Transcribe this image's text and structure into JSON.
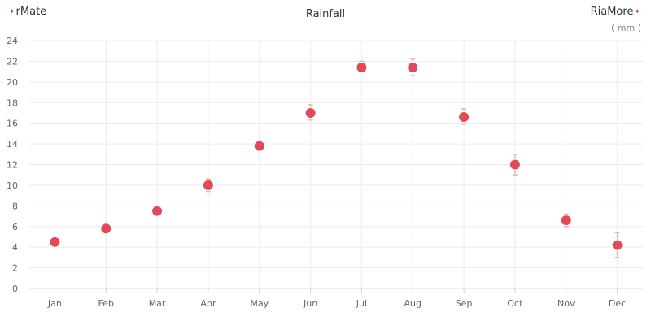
{
  "brand": {
    "left": "rMate",
    "right": "RiaMore"
  },
  "chart_data": {
    "type": "scatter",
    "title": "Rainfall",
    "unit": "( mm )",
    "categories": [
      "Jan",
      "Feb",
      "Mar",
      "Apr",
      "May",
      "Jun",
      "Jul",
      "Aug",
      "Sep",
      "Oct",
      "Nov",
      "Dec"
    ],
    "series": [
      {
        "values": [
          4.5,
          5.8,
          7.5,
          10.0,
          13.8,
          17.0,
          21.4,
          21.4,
          16.6,
          12.0,
          6.6,
          4.2
        ],
        "error_low": [
          4.2,
          5.6,
          7.3,
          9.4,
          13.6,
          16.3,
          21.0,
          20.6,
          15.9,
          11.0,
          6.0,
          3.0
        ],
        "error_high": [
          4.8,
          6.0,
          7.7,
          10.6,
          14.2,
          17.8,
          22.0,
          22.2,
          17.4,
          13.0,
          7.2,
          5.4
        ]
      }
    ],
    "ylim": [
      0,
      24
    ],
    "yticks": [
      0,
      2,
      4,
      6,
      8,
      10,
      12,
      14,
      16,
      18,
      20,
      22,
      24
    ],
    "grid": true,
    "colors": {
      "point": "#e0404f",
      "error_bar": "#e8b8a8",
      "grid": "#ececec"
    }
  }
}
